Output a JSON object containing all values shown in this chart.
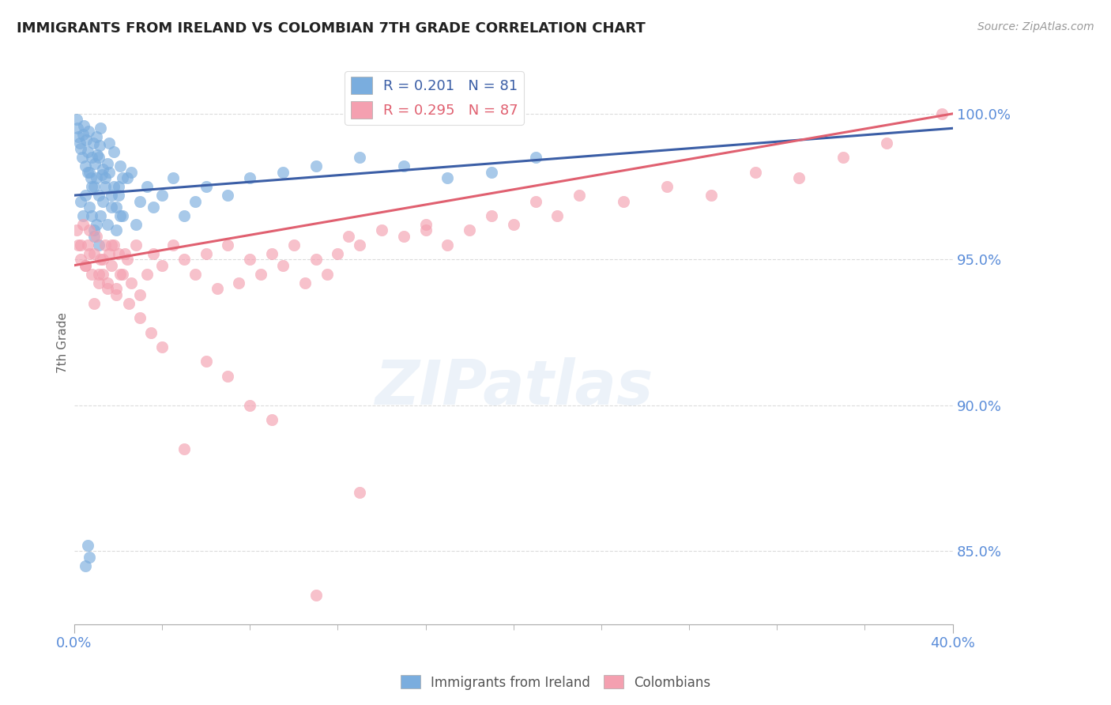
{
  "title": "IMMIGRANTS FROM IRELAND VS COLOMBIAN 7TH GRADE CORRELATION CHART",
  "source_text": "Source: ZipAtlas.com",
  "ylabel": "7th Grade",
  "ylabel_right_ticks": [
    85.0,
    90.0,
    95.0,
    100.0
  ],
  "xmin": 0.0,
  "xmax": 40.0,
  "ymin": 82.5,
  "ymax": 101.8,
  "legend_ireland": "R = 0.201   N = 81",
  "legend_colombian": "R = 0.295   N = 87",
  "legend_label_ireland": "Immigrants from Ireland",
  "legend_label_colombian": "Colombians",
  "color_ireland": "#7aadde",
  "color_colombian": "#f4a0b0",
  "color_ireland_line": "#3b5ea6",
  "color_colombian_line": "#e06070",
  "color_axis_labels": "#5b8dd9",
  "color_grid": "#cccccc",
  "color_title": "#222222",
  "background_color": "#ffffff",
  "ireland_points_x": [
    0.1,
    0.15,
    0.2,
    0.25,
    0.3,
    0.35,
    0.4,
    0.45,
    0.5,
    0.55,
    0.6,
    0.65,
    0.7,
    0.75,
    0.8,
    0.85,
    0.9,
    0.95,
    1.0,
    1.05,
    1.1,
    1.15,
    1.2,
    1.25,
    1.3,
    1.4,
    1.5,
    1.6,
    1.7,
    1.8,
    1.9,
    2.0,
    2.1,
    2.2,
    2.4,
    2.6,
    2.8,
    3.0,
    3.3,
    3.6,
    4.0,
    4.5,
    5.0,
    5.5,
    6.0,
    7.0,
    8.0,
    9.5,
    11.0,
    13.0,
    15.0,
    17.0,
    19.0,
    21.0,
    0.3,
    0.4,
    0.5,
    0.6,
    0.7,
    0.8,
    0.9,
    1.0,
    1.1,
    1.2,
    1.3,
    1.4,
    1.5,
    1.6,
    1.7,
    1.8,
    1.9,
    2.0,
    2.1,
    2.2,
    0.5,
    0.6,
    0.7,
    0.8,
    0.9,
    1.0,
    1.1
  ],
  "ireland_points_y": [
    99.8,
    99.5,
    99.2,
    99.0,
    98.8,
    98.5,
    99.3,
    99.6,
    98.2,
    99.1,
    98.7,
    99.4,
    98.0,
    97.8,
    98.5,
    99.0,
    97.5,
    98.3,
    99.2,
    98.6,
    97.2,
    98.9,
    99.5,
    97.9,
    98.1,
    97.5,
    98.3,
    99.0,
    97.2,
    98.7,
    96.8,
    97.5,
    98.2,
    96.5,
    97.8,
    98.0,
    96.2,
    97.0,
    97.5,
    96.8,
    97.2,
    97.8,
    96.5,
    97.0,
    97.5,
    97.2,
    97.8,
    98.0,
    98.2,
    98.5,
    98.2,
    97.8,
    98.0,
    98.5,
    97.0,
    96.5,
    97.2,
    98.0,
    96.8,
    97.5,
    96.0,
    97.8,
    98.5,
    96.5,
    97.0,
    97.8,
    96.2,
    98.0,
    96.8,
    97.5,
    96.0,
    97.2,
    96.5,
    97.8,
    84.5,
    85.2,
    84.8,
    96.5,
    95.8,
    96.2,
    95.5
  ],
  "colombian_points_x": [
    0.1,
    0.2,
    0.3,
    0.4,
    0.5,
    0.6,
    0.7,
    0.8,
    0.9,
    1.0,
    1.1,
    1.2,
    1.3,
    1.4,
    1.5,
    1.6,
    1.7,
    1.8,
    1.9,
    2.0,
    2.2,
    2.4,
    2.6,
    2.8,
    3.0,
    3.3,
    3.6,
    4.0,
    4.5,
    5.0,
    5.5,
    6.0,
    6.5,
    7.0,
    7.5,
    8.0,
    8.5,
    9.0,
    9.5,
    10.0,
    10.5,
    11.0,
    11.5,
    12.0,
    12.5,
    13.0,
    14.0,
    15.0,
    16.0,
    17.0,
    18.0,
    19.0,
    20.0,
    21.0,
    22.0,
    23.0,
    25.0,
    27.0,
    29.0,
    31.0,
    33.0,
    35.0,
    37.0,
    39.5,
    0.3,
    0.5,
    0.7,
    0.9,
    1.1,
    1.3,
    1.5,
    1.7,
    1.9,
    2.1,
    2.3,
    2.5,
    3.0,
    3.5,
    4.0,
    5.0,
    6.0,
    7.0,
    8.0,
    9.0,
    11.0,
    13.0,
    16.0
  ],
  "colombian_points_y": [
    96.0,
    95.5,
    95.0,
    96.2,
    94.8,
    95.5,
    96.0,
    94.5,
    95.2,
    95.8,
    94.2,
    95.0,
    94.5,
    95.5,
    94.0,
    95.2,
    94.8,
    95.5,
    94.0,
    95.2,
    94.5,
    95.0,
    94.2,
    95.5,
    93.8,
    94.5,
    95.2,
    94.8,
    95.5,
    95.0,
    94.5,
    95.2,
    94.0,
    95.5,
    94.2,
    95.0,
    94.5,
    95.2,
    94.8,
    95.5,
    94.2,
    95.0,
    94.5,
    95.2,
    95.8,
    95.5,
    96.0,
    95.8,
    96.2,
    95.5,
    96.0,
    96.5,
    96.2,
    97.0,
    96.5,
    97.2,
    97.0,
    97.5,
    97.2,
    98.0,
    97.8,
    98.5,
    99.0,
    100.0,
    95.5,
    94.8,
    95.2,
    93.5,
    94.5,
    95.0,
    94.2,
    95.5,
    93.8,
    94.5,
    95.2,
    93.5,
    93.0,
    92.5,
    92.0,
    88.5,
    91.5,
    91.0,
    90.0,
    89.5,
    83.5,
    87.0,
    96.0
  ]
}
